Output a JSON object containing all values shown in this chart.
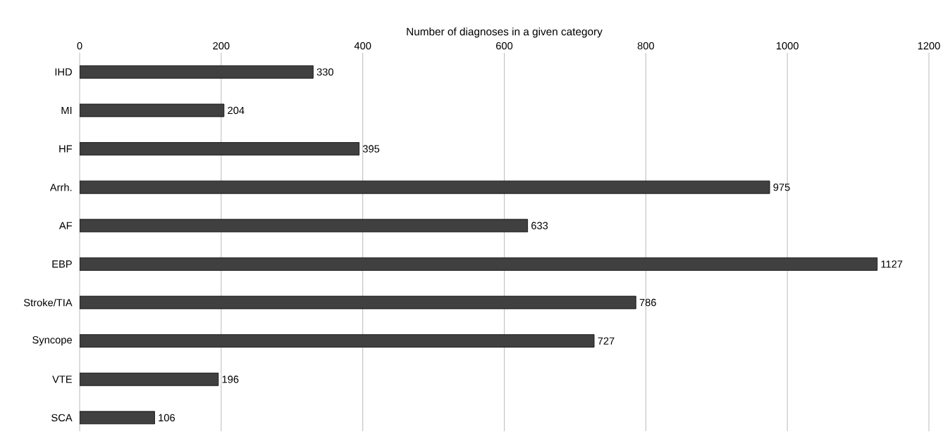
{
  "chart_data": {
    "type": "bar",
    "orientation": "horizontal",
    "xlabel": "Number  of diagnoses in a given category",
    "categories": [
      "IHD",
      "MI",
      "HF",
      "Arrh.",
      "AF",
      "EBP",
      "Stroke/TIA",
      "Syncope",
      "VTE",
      "SCA"
    ],
    "values": [
      330,
      204,
      395,
      975,
      633,
      1127,
      786,
      727,
      196,
      106
    ],
    "color": "#404040",
    "xlim": [
      0,
      1200
    ],
    "xticks": [
      0,
      200,
      400,
      600,
      800,
      1000,
      1200
    ],
    "grid": "x",
    "data_labels": true
  }
}
